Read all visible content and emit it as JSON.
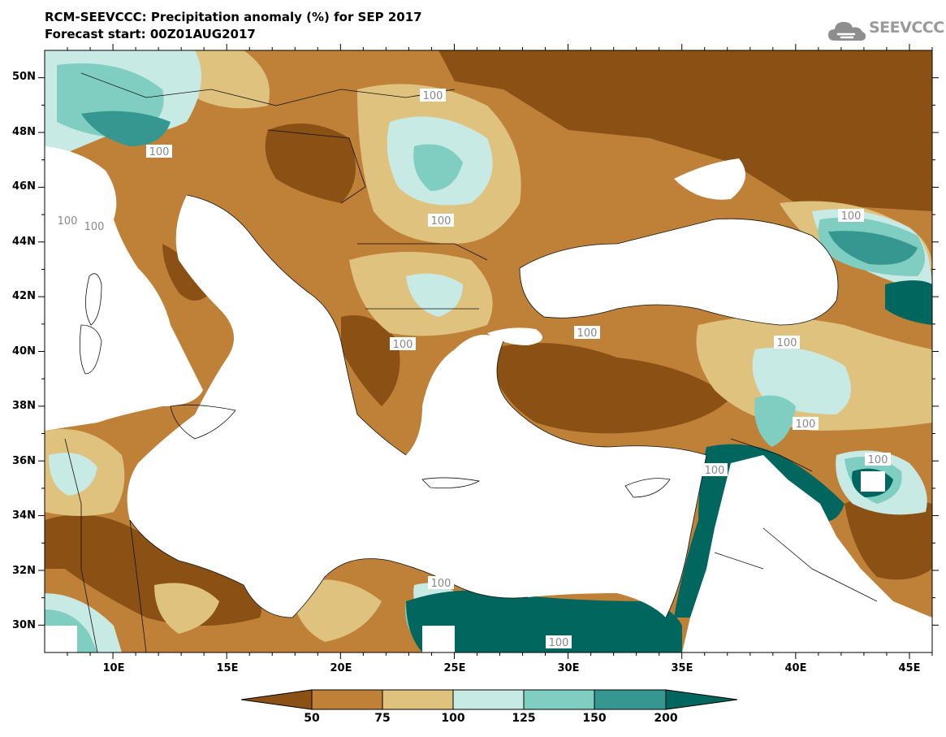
{
  "header": {
    "title": "RCM-SEEVCCC: Precipitation anomaly (%) for SEP 2017",
    "subtitle": "Forecast start: 00Z01AUG2017"
  },
  "logo": {
    "text": "SEEVCCC",
    "icon": "cloud-logo-icon",
    "color": "#9a9a9a"
  },
  "map": {
    "variable": "Precipitation anomaly",
    "units": "%",
    "lon_range": [
      7,
      46
    ],
    "lat_range": [
      29,
      51
    ],
    "lat_ticks": [
      "50N",
      "48N",
      "46N",
      "44N",
      "42N",
      "40N",
      "38N",
      "36N",
      "34N",
      "32N",
      "30N"
    ],
    "lon_ticks": [
      "10E",
      "15E",
      "20E",
      "25E",
      "30E",
      "35E",
      "40E",
      "45E"
    ],
    "contour_labels": [
      "100",
      "100",
      "100",
      "100",
      "100",
      "100",
      "100",
      "100",
      "100",
      "100",
      "100",
      "100",
      "100",
      "100"
    ],
    "sea_color": "#ffffff"
  },
  "colorbar": {
    "boundaries": [
      "50",
      "75",
      "100",
      "125",
      "150",
      "200"
    ],
    "colors": [
      "#8b5014",
      "#bf8038",
      "#dfc27d",
      "#c7eae5",
      "#80cdc1",
      "#35978f",
      "#01665e"
    ]
  }
}
